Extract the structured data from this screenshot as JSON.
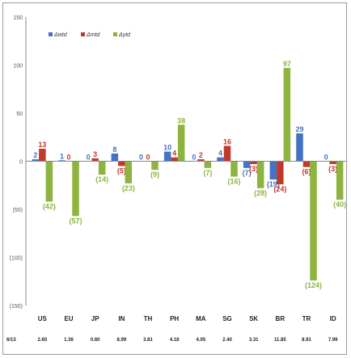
{
  "chart_data": {
    "type": "bar",
    "categories": [
      "US",
      "EU",
      "JP",
      "IN",
      "TH",
      "PH",
      "MA",
      "SG",
      "SK",
      "BR",
      "TR",
      "ID"
    ],
    "series": [
      {
        "name": "Δwtd",
        "color": "#4472C4",
        "values": [
          2,
          1,
          0,
          8,
          0,
          10,
          0,
          4,
          -7,
          -19,
          29,
          0
        ]
      },
      {
        "name": "Δmtd",
        "color": "#C0392B",
        "values": [
          13,
          0,
          3,
          -5,
          0,
          4,
          2,
          16,
          -3,
          -24,
          -6,
          -3
        ]
      },
      {
        "name": "Δytd",
        "color": "#8DB43E",
        "values": [
          -42,
          -57,
          -14,
          -23,
          -9,
          38,
          -7,
          -16,
          -28,
          97,
          -124,
          -40
        ]
      }
    ],
    "data_labels": [
      [
        "2",
        "1",
        "0",
        "8",
        "0",
        "10",
        "0",
        "4",
        "(7)",
        "(19)",
        "29",
        "0"
      ],
      [
        "13",
        "0",
        "3",
        "(5)",
        "0",
        "4",
        "2",
        "16",
        "(3)",
        "(24)",
        "(6)",
        "(3)"
      ],
      [
        "(42)",
        "(57)",
        "(14)",
        "(23)",
        "(9)",
        "38",
        "(7)",
        "(16)",
        "(28)",
        "97",
        "(124)",
        "(40)"
      ]
    ],
    "yticks": [
      "150",
      "100",
      "50",
      "0",
      "(50)",
      "(100)",
      "(150)"
    ],
    "ylim": [
      -150,
      150
    ],
    "legend_position": "top-left",
    "row_label": "6/13",
    "row_values": [
      "2.60",
      "1.36",
      "0.60",
      "8.99",
      "3.81",
      "4.18",
      "4.05",
      "2.40",
      "3.31",
      "11.85",
      "8.91",
      "7.99"
    ],
    "grid": false
  }
}
